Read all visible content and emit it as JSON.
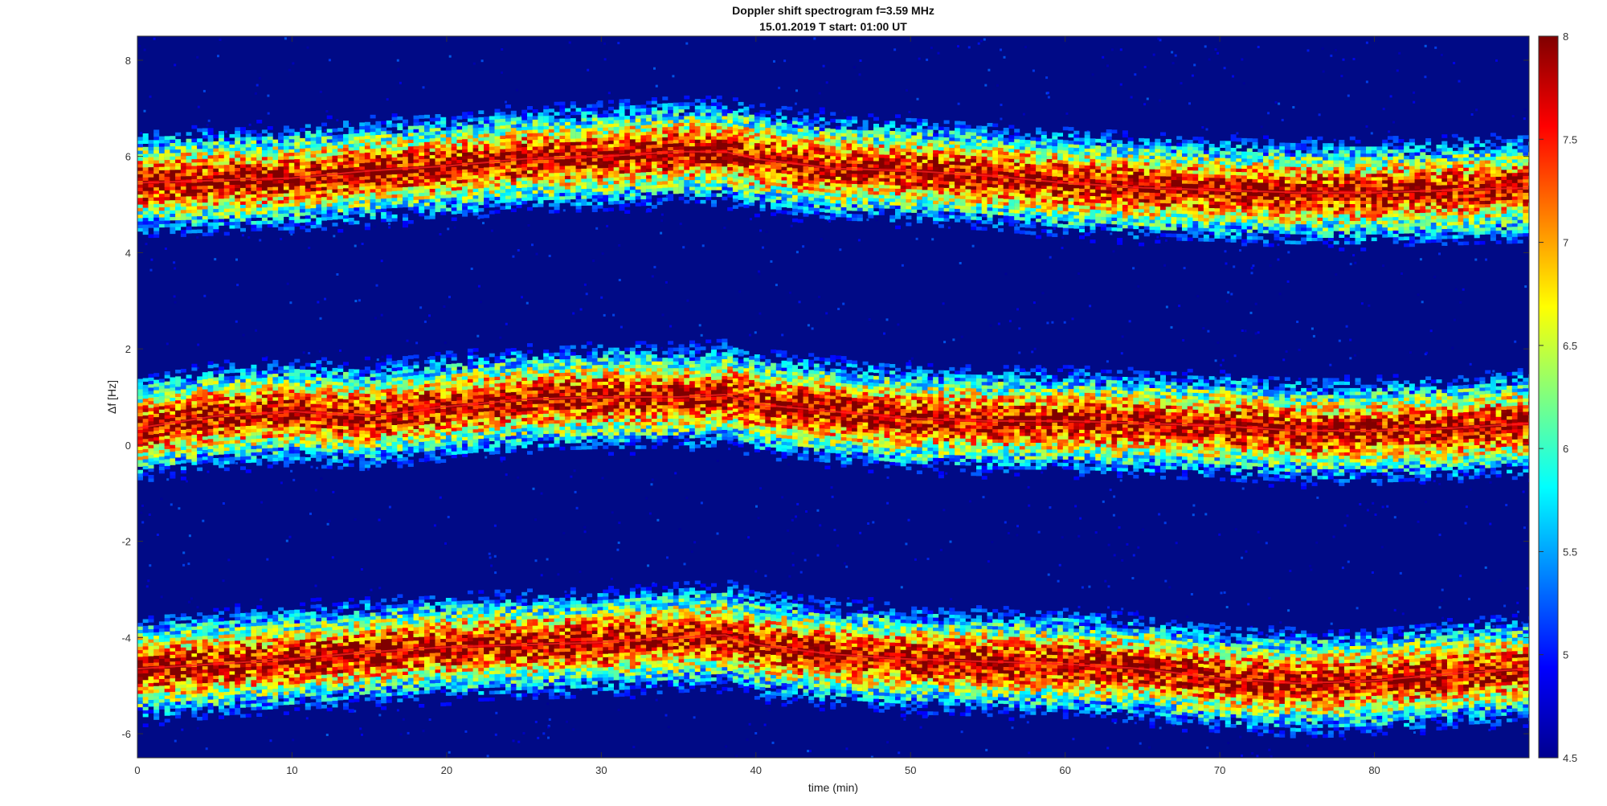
{
  "chart_data": {
    "type": "heatmap",
    "title": "Doppler shift spectrogram f=3.59 MHz",
    "subtitle": "15.01.2019   T start: 01:00 UT",
    "xlabel": "time (min)",
    "ylabel": "Δf [Hz]",
    "xlim": [
      0,
      90
    ],
    "ylim": [
      -6.5,
      8.5
    ],
    "xticks": [
      0,
      10,
      20,
      30,
      40,
      50,
      60,
      70,
      80
    ],
    "yticks": [
      -6,
      -4,
      -2,
      0,
      2,
      4,
      6,
      8
    ],
    "colorbar": {
      "colormap": "jet",
      "range": [
        4.5,
        8
      ],
      "ticks": [
        4.5,
        5,
        5.5,
        6,
        6.5,
        7,
        7.5,
        8
      ]
    },
    "series": [
      {
        "x": [
          0,
          5,
          10,
          15,
          20,
          25,
          30,
          35,
          38,
          40,
          45,
          50,
          55,
          60,
          65,
          70,
          75,
          80,
          85,
          90
        ],
        "values": [
          5.45,
          5.5,
          5.55,
          5.7,
          5.8,
          5.95,
          6.0,
          6.1,
          6.1,
          5.95,
          5.75,
          5.7,
          5.6,
          5.45,
          5.35,
          5.3,
          5.25,
          5.25,
          5.3,
          5.35
        ]
      },
      {
        "x": [
          0,
          5,
          10,
          15,
          20,
          25,
          30,
          35,
          38,
          40,
          45,
          50,
          55,
          60,
          65,
          70,
          75,
          80,
          85,
          90
        ],
        "values": [
          0.35,
          0.6,
          0.7,
          0.6,
          0.8,
          0.95,
          1.0,
          1.0,
          1.05,
          0.85,
          0.7,
          0.55,
          0.5,
          0.5,
          0.45,
          0.4,
          0.3,
          0.3,
          0.35,
          0.45
        ]
      },
      {
        "x": [
          0,
          5,
          10,
          15,
          20,
          25,
          30,
          35,
          38,
          40,
          45,
          50,
          55,
          60,
          65,
          70,
          75,
          80,
          85,
          90
        ],
        "values": [
          -4.65,
          -4.55,
          -4.45,
          -4.3,
          -4.2,
          -4.15,
          -4.1,
          -4.0,
          -3.95,
          -4.15,
          -4.35,
          -4.45,
          -4.5,
          -4.55,
          -4.65,
          -4.85,
          -4.95,
          -4.9,
          -4.75,
          -4.65
        ]
      }
    ]
  }
}
